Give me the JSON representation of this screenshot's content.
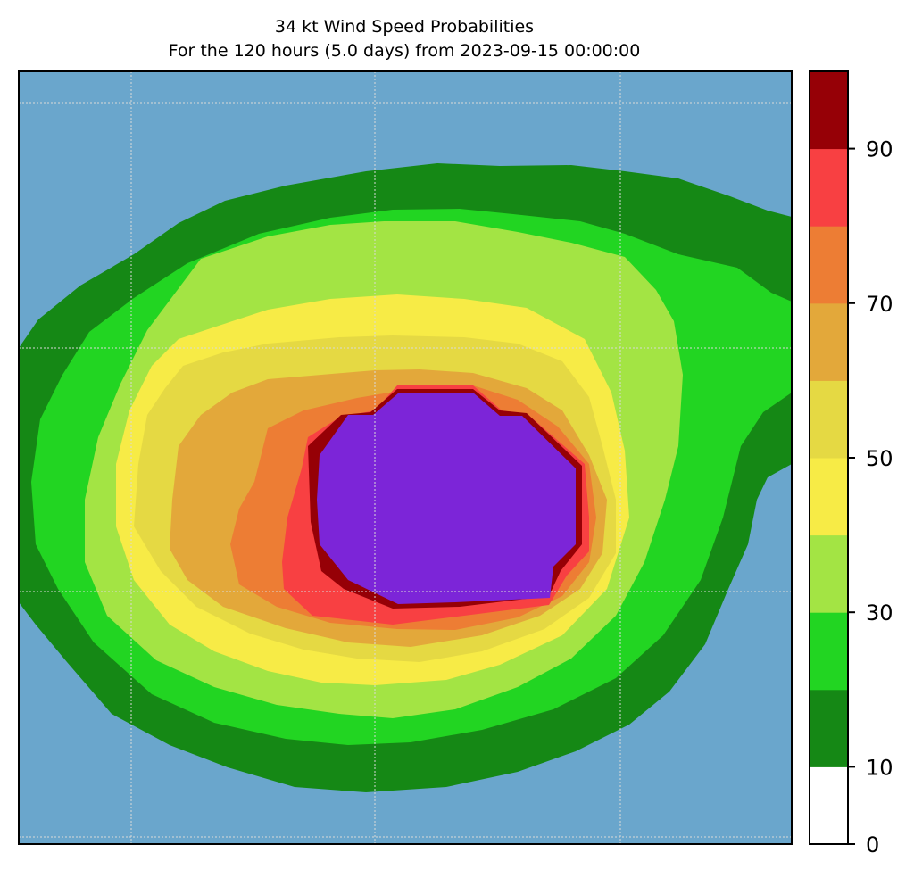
{
  "chart_data": {
    "type": "heatmap",
    "title": "34 kt Wind Speed Probabilities",
    "subtitle": "For the 120 hours (5.0 days) from 2023-09-15 00:00:00",
    "xlabel": "",
    "ylabel": "",
    "grid": true,
    "background_color": "#6aa6cc",
    "colorbar": {
      "range": [
        0,
        100
      ],
      "levels": [
        0,
        10,
        20,
        30,
        40,
        50,
        60,
        70,
        80,
        90,
        100
      ],
      "tick_values": [
        0,
        10,
        30,
        50,
        70,
        90
      ],
      "tick_labels": [
        "0",
        "10",
        "30",
        "50",
        "70",
        "90"
      ],
      "colors": [
        "#ffffff",
        "#158815",
        "#22d522",
        "#a3e444",
        "#f7eb46",
        "#e5d943",
        "#e3a83a",
        "#ed7d34",
        "#f84042",
        "#960006",
        "#7c25d8"
      ]
    },
    "contour_levels": [
      5,
      10,
      20,
      30,
      40,
      50,
      60,
      70,
      80,
      90
    ],
    "contour_colors": [
      "#158815",
      "#22d522",
      "#a3e444",
      "#f7eb46",
      "#e5d943",
      "#e3a83a",
      "#ed7d34",
      "#f84042",
      "#960006",
      "#7c25d8"
    ]
  }
}
